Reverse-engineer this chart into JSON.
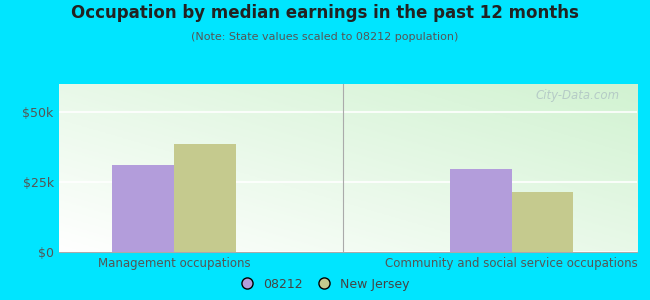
{
  "title": "Occupation by median earnings in the past 12 months",
  "subtitle": "(Note: State values scaled to 08212 population)",
  "categories": [
    "Management occupations",
    "Community and social service occupations"
  ],
  "values_08212": [
    31000,
    29500
  ],
  "values_nj": [
    38500,
    21500
  ],
  "color_08212": "#b39ddb",
  "color_nj": "#c5ca8e",
  "ylim": [
    0,
    60000
  ],
  "yticks": [
    0,
    25000,
    50000
  ],
  "ytick_labels": [
    "$0",
    "$25k",
    "$50k"
  ],
  "legend_08212": "08212",
  "legend_nj": "New Jersey",
  "bg_outer": "#00e5ff",
  "watermark": "City-Data.com",
  "bar_width": 0.32
}
